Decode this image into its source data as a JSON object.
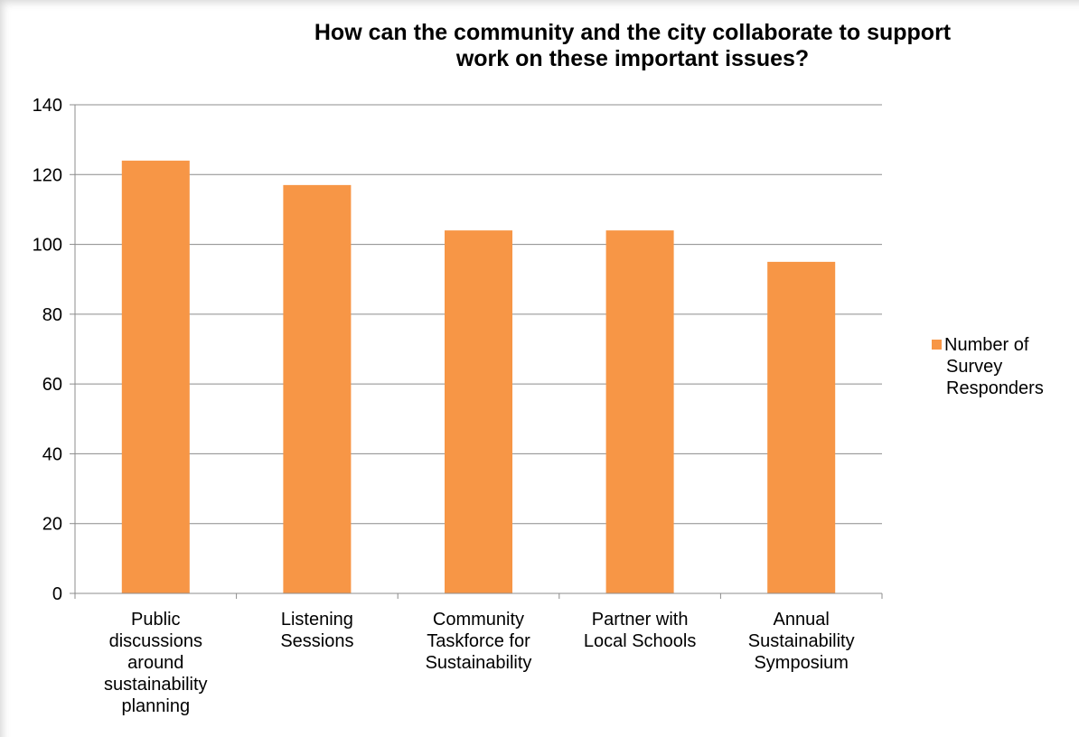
{
  "chart_data": {
    "type": "bar",
    "title": "How can the community and the city collaborate to support work on these important issues?",
    "title_lines": [
      "How can the community and the city collaborate to support",
      "work on these important issues?"
    ],
    "categories": [
      "Public discussions around sustainability planning",
      "Listening Sessions",
      "Community Taskforce for Sustainability",
      "Partner with Local Schools",
      "Annual Sustainability Symposium"
    ],
    "category_lines": [
      [
        "Public",
        "discussions",
        "around",
        "sustainability",
        "planning"
      ],
      [
        "Listening",
        "Sessions"
      ],
      [
        "Community",
        "Taskforce for",
        "Sustainability"
      ],
      [
        "Partner with",
        "Local Schools"
      ],
      [
        "Annual",
        "Sustainability",
        "Symposium"
      ]
    ],
    "series": [
      {
        "name": "Number of Survey Responders",
        "name_lines": [
          "Number of",
          "Survey",
          "Responders"
        ],
        "values": [
          124,
          117,
          104,
          104,
          95
        ],
        "color": "#F79646"
      }
    ],
    "ylim": [
      0,
      140
    ],
    "yticks": [
      0,
      20,
      40,
      60,
      80,
      100,
      120,
      140
    ],
    "grid": true,
    "legend": "right",
    "xlabel": "",
    "ylabel": ""
  }
}
